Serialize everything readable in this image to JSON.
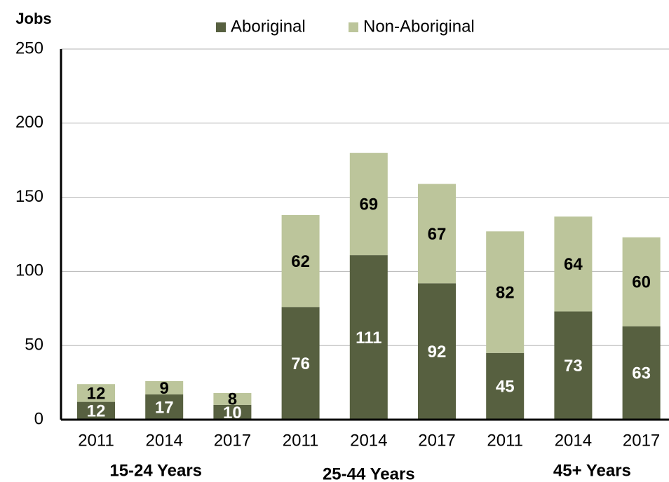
{
  "chart_data": {
    "type": "stacked_bar",
    "y_label": "Jobs",
    "categories": [
      "2011",
      "2014",
      "2017",
      "2011",
      "2014",
      "2017",
      "2011",
      "2014",
      "2017"
    ],
    "groups": [
      "15-24 Years",
      "25-44 Years",
      "45+ Years"
    ],
    "series": [
      {
        "name": "Aboriginal",
        "color": "#576040",
        "label_color": "#ffffff",
        "values": [
          12,
          17,
          10,
          76,
          111,
          92,
          45,
          73,
          63
        ]
      },
      {
        "name": "Non-Aboriginal",
        "color": "#bcc59b",
        "label_color": "#000000",
        "values": [
          12,
          9,
          8,
          62,
          69,
          67,
          82,
          64,
          60
        ]
      }
    ],
    "ylim": [
      0,
      250
    ],
    "yticks": [
      0,
      50,
      100,
      150,
      200,
      250
    ],
    "grid": true,
    "legend": "top"
  }
}
